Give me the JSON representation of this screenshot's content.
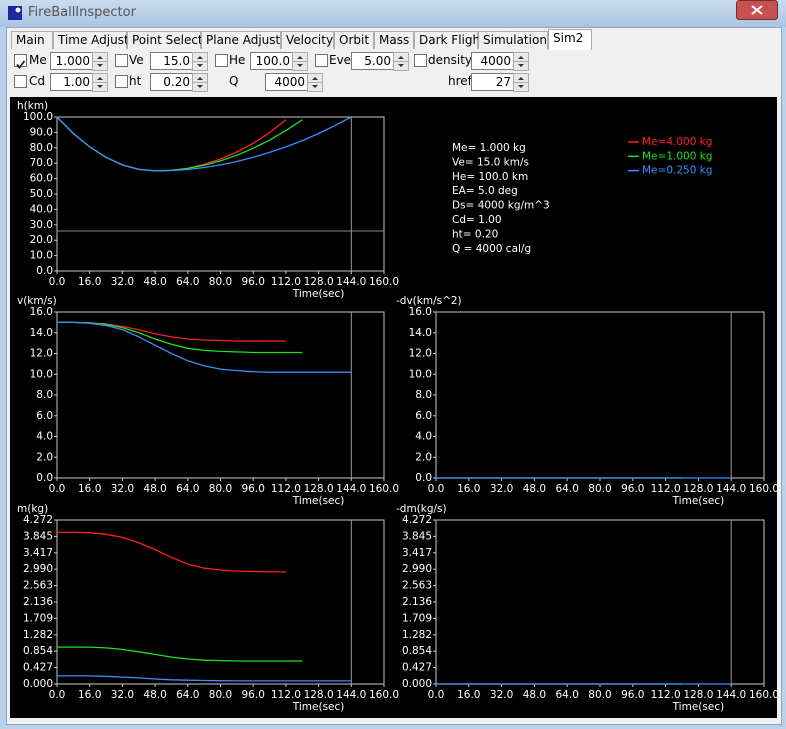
{
  "window": {
    "title": "FireBallInspector"
  },
  "tabs": [
    "Main",
    "Time Adjust",
    "Point Select",
    "Plane Adjust",
    "Velocity",
    "Orbit",
    "Mass",
    "Dark Flight",
    "Simulation",
    "Sim2"
  ],
  "active_tab": 9,
  "controls": [
    {
      "label": "Me",
      "value": "1.000",
      "checked": true
    },
    {
      "label": "Ve",
      "value": "15.0",
      "checked": false
    },
    {
      "label": "He",
      "value": "100.0",
      "checked": false
    },
    {
      "label": "Eve",
      "value": "5.00",
      "checked": false
    },
    {
      "label": "density",
      "value": "4000",
      "checked": false
    },
    {
      "label": "Cd",
      "value": "1.00",
      "checked": false
    },
    {
      "label": "ht",
      "value": "0.20",
      "checked": false
    },
    {
      "label": "Q",
      "value": "4000"
    },
    {
      "label": "href",
      "value": "27"
    }
  ],
  "info": [
    "Me= 1.000 kg",
    "Ve= 15.0 km/s",
    "He= 100.0 km",
    "EA= 5.0 deg",
    "Ds= 4000 kg/m^3",
    "Cd= 1.00",
    "ht= 0.20",
    "Q = 4000 cal/g"
  ],
  "chart_data": [
    {
      "type": "line",
      "y_label": "h(km)",
      "x_label": "Time(sec)",
      "legend": "upper right",
      "marker_x": 144,
      "hline_y": 26,
      "xlim": [
        0,
        160
      ],
      "ylim": [
        0,
        100
      ],
      "xticks": [
        {
          "value": 0,
          "label": "0.0"
        },
        {
          "value": 16,
          "label": "16.0"
        },
        {
          "value": 32,
          "label": "32.0"
        },
        {
          "value": 48,
          "label": "48.0"
        },
        {
          "value": 64,
          "label": "64.0"
        },
        {
          "value": 80,
          "label": "80.0"
        },
        {
          "value": 96,
          "label": "96.0"
        },
        {
          "value": 112,
          "label": "112.0"
        },
        {
          "value": 128,
          "label": "128.0"
        },
        {
          "value": 144,
          "label": "144.0"
        },
        {
          "value": 160,
          "label": "160.0"
        }
      ],
      "yticks": [
        {
          "value": 0,
          "label": "0.0"
        },
        {
          "value": 10,
          "label": "10.0"
        },
        {
          "value": 20,
          "label": "20.0"
        },
        {
          "value": 30,
          "label": "30.0"
        },
        {
          "value": 40,
          "label": "40.0"
        },
        {
          "value": 50,
          "label": "50.0"
        },
        {
          "value": 60,
          "label": "60.0"
        },
        {
          "value": 70,
          "label": "70.0"
        },
        {
          "value": 80,
          "label": "80.0"
        },
        {
          "value": 90,
          "label": "90.0"
        },
        {
          "value": 100,
          "label": "100.0"
        }
      ],
      "x": [
        0,
        8,
        16,
        24,
        32,
        40,
        48,
        56,
        64,
        72,
        80,
        88,
        96,
        104,
        112,
        120,
        128,
        136,
        144
      ],
      "series": [
        {
          "name": "Me=4.000 kg",
          "color": "#ff2020",
          "values": [
            100,
            89.3,
            80.6,
            73.8,
            68.9,
            66.0,
            65.0,
            65.3,
            66.7,
            69.2,
            72.7,
            77.3,
            82.9,
            89.9,
            98.2,
            null,
            null,
            null,
            null
          ]
        },
        {
          "name": "Me=1.000 kg",
          "color": "#20e020",
          "values": [
            100,
            89.3,
            80.6,
            73.8,
            68.9,
            66.0,
            65.0,
            65.4,
            66.6,
            68.7,
            71.5,
            75.2,
            79.7,
            85.0,
            91.2,
            98.2,
            null,
            null,
            null
          ]
        },
        {
          "name": "Me=0.250 kg",
          "color": "#3a8eff",
          "values": [
            100,
            89.3,
            80.6,
            73.8,
            68.9,
            66.0,
            65.0,
            65.2,
            65.9,
            67.2,
            68.9,
            71.1,
            73.8,
            77.0,
            80.6,
            84.7,
            89.3,
            94.4,
            100
          ]
        }
      ]
    },
    {
      "type": "line",
      "y_label": "v(km/s)",
      "x_label": "Time(sec)",
      "marker_x": 144,
      "xlim": [
        0,
        160
      ],
      "ylim": [
        0,
        16
      ],
      "xticks": [
        {
          "value": 0,
          "label": "0.0"
        },
        {
          "value": 16,
          "label": "16.0"
        },
        {
          "value": 32,
          "label": "32.0"
        },
        {
          "value": 48,
          "label": "48.0"
        },
        {
          "value": 64,
          "label": "64.0"
        },
        {
          "value": 80,
          "label": "80.0"
        },
        {
          "value": 96,
          "label": "96.0"
        },
        {
          "value": 112,
          "label": "112.0"
        },
        {
          "value": 128,
          "label": "128.0"
        },
        {
          "value": 144,
          "label": "144.0"
        },
        {
          "value": 160,
          "label": "160.0"
        }
      ],
      "yticks": [
        {
          "value": 0,
          "label": "0.0"
        },
        {
          "value": 2,
          "label": "2.0"
        },
        {
          "value": 4,
          "label": "4.0"
        },
        {
          "value": 6,
          "label": "6.0"
        },
        {
          "value": 8,
          "label": "8.0"
        },
        {
          "value": 10,
          "label": "10.0"
        },
        {
          "value": 12,
          "label": "12.0"
        },
        {
          "value": 14,
          "label": "14.0"
        },
        {
          "value": 16,
          "label": "16.0"
        }
      ],
      "x": [
        0,
        8,
        16,
        24,
        32,
        40,
        48,
        56,
        64,
        72,
        80,
        88,
        96,
        104,
        112,
        120,
        128,
        136,
        144
      ],
      "series": [
        {
          "color": "#ff2020",
          "values": [
            15.0,
            15.0,
            14.95,
            14.85,
            14.6,
            14.3,
            13.9,
            13.6,
            13.4,
            13.3,
            13.25,
            13.2,
            13.2,
            13.2,
            13.2,
            null,
            null,
            null,
            null
          ]
        },
        {
          "color": "#20e020",
          "values": [
            15.0,
            15.0,
            14.95,
            14.8,
            14.5,
            14.0,
            13.4,
            12.9,
            12.5,
            12.3,
            12.2,
            12.15,
            12.1,
            12.1,
            12.1,
            12.1,
            null,
            null,
            null
          ]
        },
        {
          "color": "#3a8eff",
          "values": [
            15.0,
            15.0,
            14.9,
            14.7,
            14.3,
            13.6,
            12.8,
            12.0,
            11.3,
            10.8,
            10.5,
            10.35,
            10.25,
            10.2,
            10.2,
            10.2,
            10.2,
            10.2,
            10.2
          ]
        }
      ]
    },
    {
      "type": "line",
      "y_label": "-dv(km/s^2)",
      "x_label": "Time(sec)",
      "marker_x": 144,
      "xlim": [
        0,
        160
      ],
      "ylim": [
        0,
        16
      ],
      "xticks": [
        {
          "value": 0,
          "label": "0.0"
        },
        {
          "value": 16,
          "label": "16.0"
        },
        {
          "value": 32,
          "label": "32.0"
        },
        {
          "value": 48,
          "label": "48.0"
        },
        {
          "value": 64,
          "label": "64.0"
        },
        {
          "value": 80,
          "label": "80.0"
        },
        {
          "value": 96,
          "label": "96.0"
        },
        {
          "value": 112,
          "label": "112.0"
        },
        {
          "value": 128,
          "label": "128.0"
        },
        {
          "value": 144,
          "label": "144.0"
        },
        {
          "value": 160,
          "label": "160.0"
        }
      ],
      "yticks": [
        {
          "value": 0,
          "label": "0.0"
        },
        {
          "value": 2,
          "label": "2.0"
        },
        {
          "value": 4,
          "label": "4.0"
        },
        {
          "value": 6,
          "label": "6.0"
        },
        {
          "value": 8,
          "label": "8.0"
        },
        {
          "value": 10,
          "label": "10.0"
        },
        {
          "value": 12,
          "label": "12.0"
        },
        {
          "value": 14,
          "label": "14.0"
        },
        {
          "value": 16,
          "label": "16.0"
        }
      ],
      "x": [
        0,
        8,
        16,
        24,
        32,
        40,
        48,
        56,
        64,
        72,
        80,
        88,
        96,
        104,
        112,
        120,
        128,
        136,
        144
      ],
      "series": [
        {
          "color": "#ff2020",
          "values": [
            0,
            0,
            0,
            0,
            0,
            0,
            0,
            0,
            0,
            0,
            0,
            0,
            0,
            0,
            0,
            null,
            null,
            null,
            null
          ]
        },
        {
          "color": "#20e020",
          "values": [
            0,
            0,
            0,
            0,
            0,
            0,
            0,
            0,
            0,
            0,
            0,
            0,
            0,
            0,
            0,
            0,
            null,
            null,
            null
          ]
        },
        {
          "color": "#3a8eff",
          "values": [
            0,
            0,
            0,
            0,
            0,
            0,
            0,
            0,
            0,
            0,
            0,
            0,
            0,
            0,
            0,
            0,
            0,
            0,
            0
          ]
        }
      ]
    },
    {
      "type": "line",
      "y_label": "m(kg)",
      "x_label": "Time(sec)",
      "marker_x": 144,
      "xlim": [
        0,
        160
      ],
      "ylim": [
        0,
        4.272
      ],
      "xticks": [
        {
          "value": 0,
          "label": "0.0"
        },
        {
          "value": 16,
          "label": "16.0"
        },
        {
          "value": 32,
          "label": "32.0"
        },
        {
          "value": 48,
          "label": "48.0"
        },
        {
          "value": 64,
          "label": "64.0"
        },
        {
          "value": 80,
          "label": "80.0"
        },
        {
          "value": 96,
          "label": "96.0"
        },
        {
          "value": 112,
          "label": "112.0"
        },
        {
          "value": 128,
          "label": "128.0"
        },
        {
          "value": 144,
          "label": "144.0"
        },
        {
          "value": 160,
          "label": "160.0"
        }
      ],
      "yticks": [
        {
          "value": 0,
          "label": "0.000"
        },
        {
          "value": 0.4272,
          "label": "0.427"
        },
        {
          "value": 0.8544,
          "label": "0.854"
        },
        {
          "value": 1.2816,
          "label": "1.282"
        },
        {
          "value": 1.7088,
          "label": "1.709"
        },
        {
          "value": 2.136,
          "label": "2.136"
        },
        {
          "value": 2.5632,
          "label": "2.563"
        },
        {
          "value": 2.9904,
          "label": "2.990"
        },
        {
          "value": 3.4176,
          "label": "3.417"
        },
        {
          "value": 3.8448,
          "label": "3.845"
        },
        {
          "value": 4.272,
          "label": "4.272"
        }
      ],
      "x": [
        0,
        8,
        16,
        24,
        32,
        40,
        48,
        56,
        64,
        72,
        80,
        88,
        96,
        104,
        112,
        120,
        128,
        136,
        144
      ],
      "series": [
        {
          "color": "#ff2020",
          "values": [
            3.95,
            3.95,
            3.94,
            3.9,
            3.82,
            3.68,
            3.5,
            3.3,
            3.12,
            3.02,
            2.97,
            2.94,
            2.93,
            2.92,
            2.92,
            null,
            null,
            null,
            null
          ]
        },
        {
          "color": "#20e020",
          "values": [
            0.96,
            0.96,
            0.96,
            0.94,
            0.9,
            0.84,
            0.77,
            0.7,
            0.65,
            0.62,
            0.61,
            0.6,
            0.6,
            0.6,
            0.6,
            0.6,
            null,
            null,
            null
          ]
        },
        {
          "color": "#3a8eff",
          "values": [
            0.21,
            0.21,
            0.21,
            0.2,
            0.18,
            0.16,
            0.13,
            0.11,
            0.1,
            0.09,
            0.085,
            0.08,
            0.08,
            0.08,
            0.08,
            0.08,
            0.08,
            0.08,
            0.08
          ]
        }
      ]
    },
    {
      "type": "line",
      "y_label": "-dm(kg/s)",
      "x_label": "Time(sec)",
      "marker_x": 144,
      "xlim": [
        0,
        160
      ],
      "ylim": [
        0,
        4.272
      ],
      "xticks": [
        {
          "value": 0,
          "label": "0.0"
        },
        {
          "value": 16,
          "label": "16.0"
        },
        {
          "value": 32,
          "label": "32.0"
        },
        {
          "value": 48,
          "label": "48.0"
        },
        {
          "value": 64,
          "label": "64.0"
        },
        {
          "value": 80,
          "label": "80.0"
        },
        {
          "value": 96,
          "label": "96.0"
        },
        {
          "value": 112,
          "label": "112.0"
        },
        {
          "value": 128,
          "label": "128.0"
        },
        {
          "value": 144,
          "label": "144.0"
        },
        {
          "value": 160,
          "label": "160.0"
        }
      ],
      "yticks": [
        {
          "value": 0,
          "label": "0.000"
        },
        {
          "value": 0.4272,
          "label": "0.427"
        },
        {
          "value": 0.8544,
          "label": "0.854"
        },
        {
          "value": 1.2816,
          "label": "1.282"
        },
        {
          "value": 1.7088,
          "label": "1.709"
        },
        {
          "value": 2.136,
          "label": "2.136"
        },
        {
          "value": 2.5632,
          "label": "2.563"
        },
        {
          "value": 2.9904,
          "label": "2.990"
        },
        {
          "value": 3.4176,
          "label": "3.417"
        },
        {
          "value": 3.8448,
          "label": "3.845"
        },
        {
          "value": 4.272,
          "label": "4.272"
        }
      ],
      "x": [
        0,
        8,
        16,
        24,
        32,
        40,
        48,
        56,
        64,
        72,
        80,
        88,
        96,
        104,
        112,
        120,
        128,
        136,
        144
      ],
      "series": [
        {
          "color": "#ff2020",
          "values": [
            0,
            0,
            0,
            0,
            0,
            0,
            0,
            0,
            0,
            0,
            0,
            0,
            0,
            0,
            0,
            null,
            null,
            null,
            null
          ]
        },
        {
          "color": "#20e020",
          "values": [
            0,
            0,
            0,
            0,
            0,
            0,
            0,
            0,
            0,
            0,
            0,
            0,
            0,
            0,
            0,
            0,
            null,
            null,
            null
          ]
        },
        {
          "color": "#3a8eff",
          "values": [
            0,
            0,
            0,
            0,
            0,
            0,
            0,
            0,
            0,
            0,
            0,
            0,
            0,
            0,
            0,
            0,
            0,
            0,
            0
          ]
        }
      ]
    }
  ]
}
